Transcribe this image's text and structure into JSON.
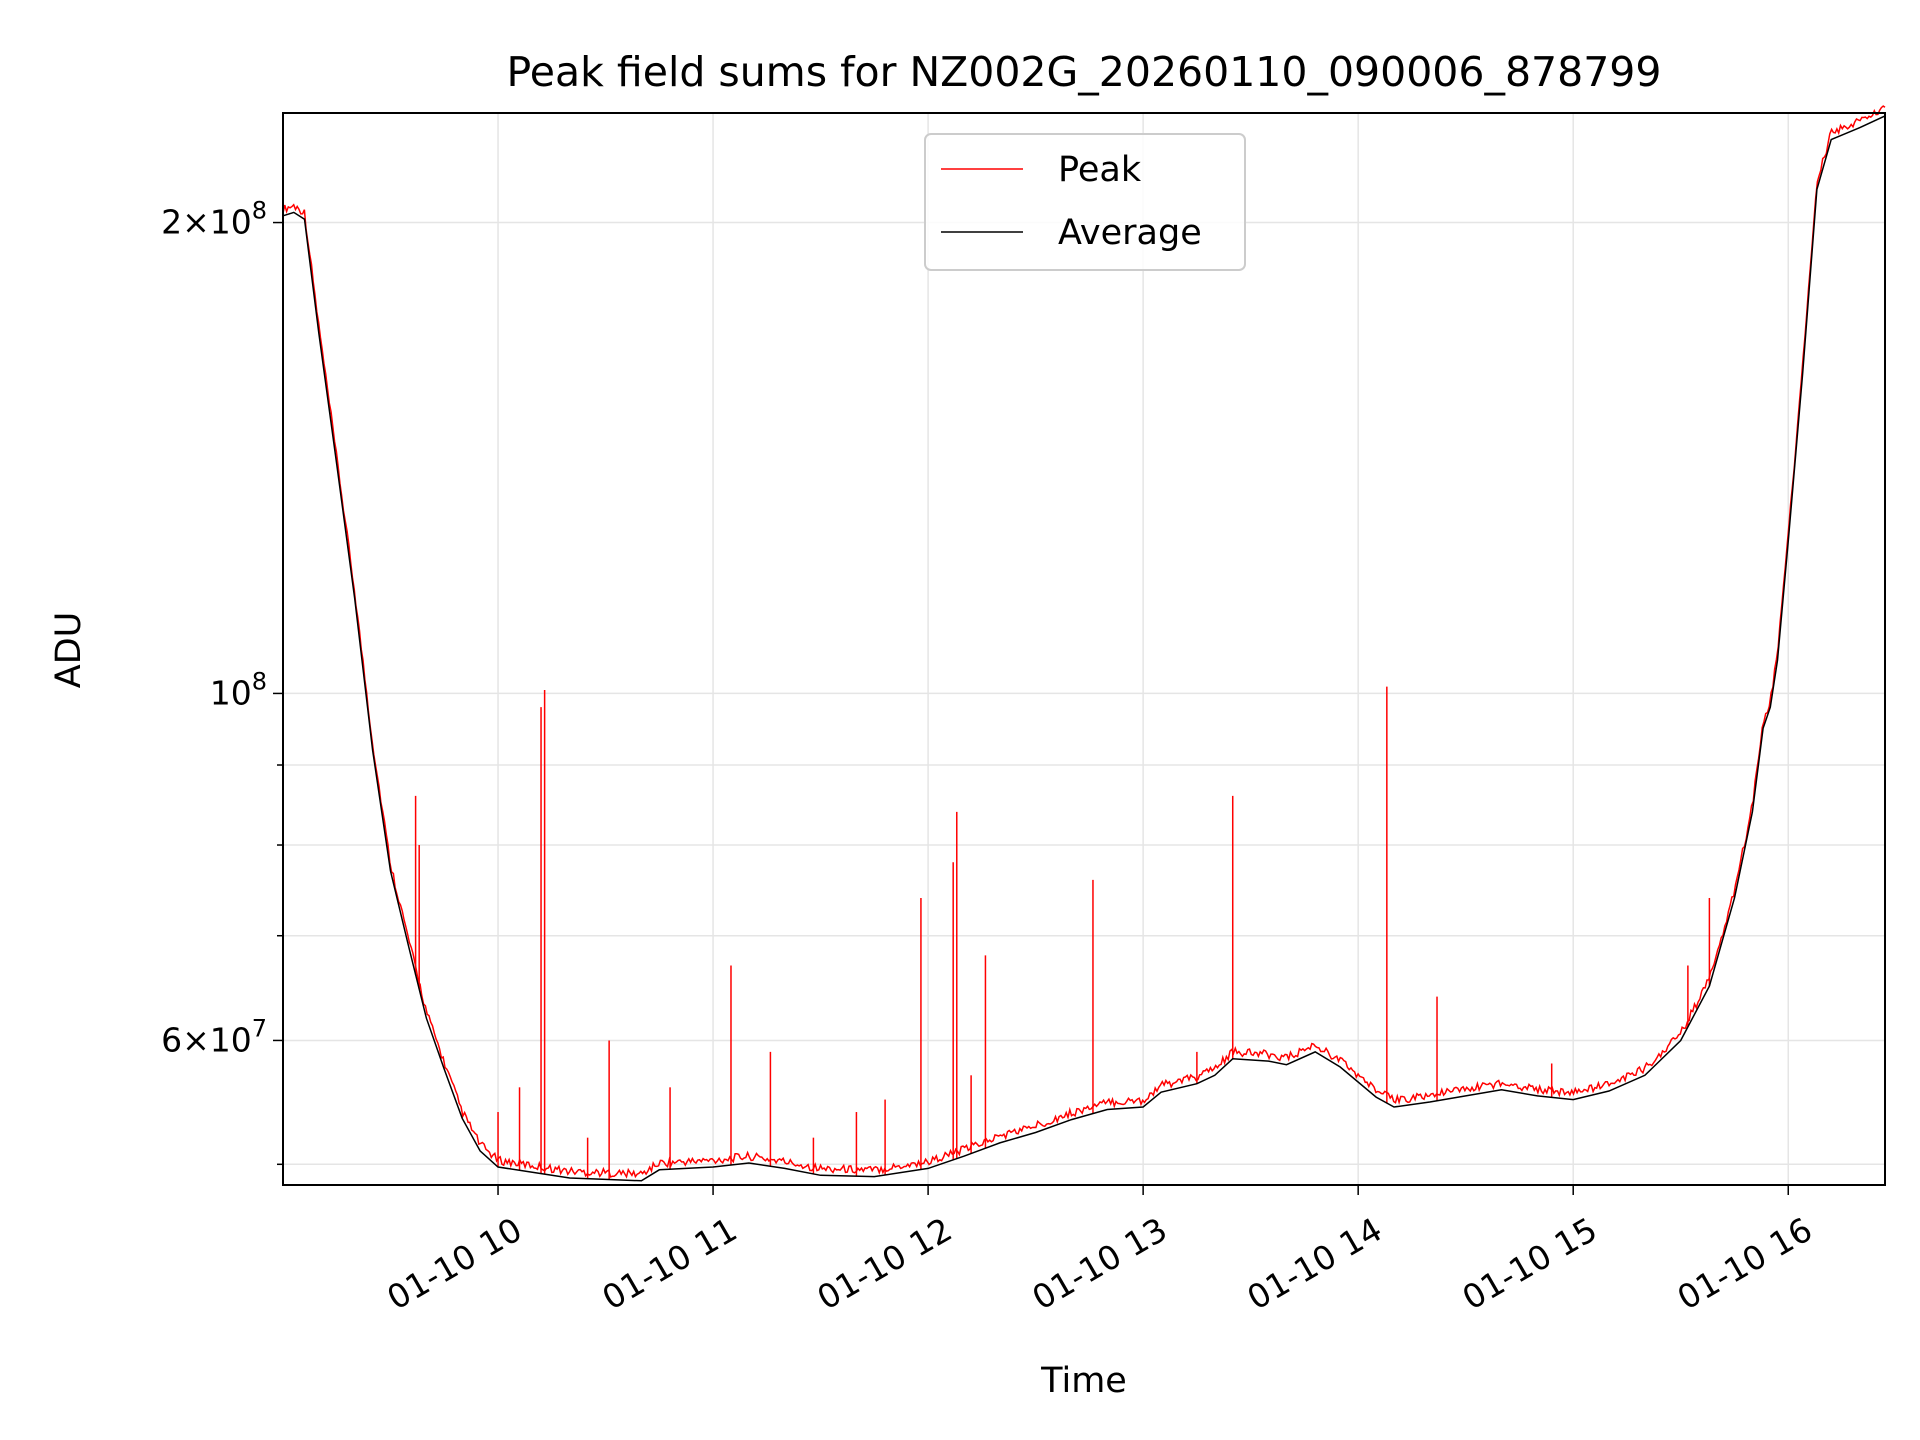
{
  "chart_data": {
    "type": "line",
    "title": "Peak field sums for NZ002G_20260110_090006_878799",
    "xlabel": "Time",
    "ylabel": "ADU",
    "x_range": [
      "2026-01-10 09:00",
      "2026-01-10 16:27"
    ],
    "yscale": "log",
    "ylim": [
      48500000,
      235000000
    ],
    "grid": true,
    "legend_position": "top-center",
    "x_ticks": [
      {
        "t": "2026-01-10 10:00",
        "label": "01-10 10"
      },
      {
        "t": "2026-01-10 11:00",
        "label": "01-10 11"
      },
      {
        "t": "2026-01-10 12:00",
        "label": "01-10 12"
      },
      {
        "t": "2026-01-10 13:00",
        "label": "01-10 13"
      },
      {
        "t": "2026-01-10 14:00",
        "label": "01-10 14"
      },
      {
        "t": "2026-01-10 15:00",
        "label": "01-10 15"
      },
      {
        "t": "2026-01-10 16:00",
        "label": "01-10 16"
      }
    ],
    "y_major_ticks": [
      {
        "value": 60000000,
        "base": "6",
        "exp": "7"
      },
      {
        "value": 100000000,
        "base": "",
        "exp": "8"
      },
      {
        "value": 200000000,
        "base": "2",
        "exp": "8"
      }
    ],
    "y_minor_ticks": [
      50000000,
      70000000,
      80000000,
      90000000
    ],
    "series": [
      {
        "name": "Average",
        "color": "#000000",
        "points": [
          [
            "2026-01-10 09:00",
            202000000
          ],
          [
            "2026-01-10 09:03",
            203000000
          ],
          [
            "2026-01-10 09:06",
            201000000
          ],
          [
            "2026-01-10 09:10",
            170000000
          ],
          [
            "2026-01-10 09:15",
            140000000
          ],
          [
            "2026-01-10 09:20",
            115000000
          ],
          [
            "2026-01-10 09:25",
            92000000
          ],
          [
            "2026-01-10 09:30",
            77000000
          ],
          [
            "2026-01-10 09:35",
            69000000
          ],
          [
            "2026-01-10 09:40",
            62000000
          ],
          [
            "2026-01-10 09:45",
            57500000
          ],
          [
            "2026-01-10 09:50",
            53500000
          ],
          [
            "2026-01-10 09:55",
            51000000
          ],
          [
            "2026-01-10 10:00",
            49800000
          ],
          [
            "2026-01-10 10:10",
            49400000
          ],
          [
            "2026-01-10 10:20",
            49000000
          ],
          [
            "2026-01-10 10:30",
            48900000
          ],
          [
            "2026-01-10 10:40",
            48800000
          ],
          [
            "2026-01-10 10:45",
            49600000
          ],
          [
            "2026-01-10 11:00",
            49800000
          ],
          [
            "2026-01-10 11:10",
            50100000
          ],
          [
            "2026-01-10 11:20",
            49700000
          ],
          [
            "2026-01-10 11:30",
            49200000
          ],
          [
            "2026-01-10 11:45",
            49100000
          ],
          [
            "2026-01-10 12:00",
            49700000
          ],
          [
            "2026-01-10 12:10",
            50600000
          ],
          [
            "2026-01-10 12:20",
            51600000
          ],
          [
            "2026-01-10 12:30",
            52400000
          ],
          [
            "2026-01-10 12:40",
            53400000
          ],
          [
            "2026-01-10 12:50",
            54200000
          ],
          [
            "2026-01-10 13:00",
            54400000
          ],
          [
            "2026-01-10 13:05",
            55600000
          ],
          [
            "2026-01-10 13:15",
            56300000
          ],
          [
            "2026-01-10 13:20",
            57000000
          ],
          [
            "2026-01-10 13:25",
            58400000
          ],
          [
            "2026-01-10 13:35",
            58200000
          ],
          [
            "2026-01-10 13:40",
            57900000
          ],
          [
            "2026-01-10 13:48",
            59000000
          ],
          [
            "2026-01-10 13:55",
            57700000
          ],
          [
            "2026-01-10 14:05",
            55200000
          ],
          [
            "2026-01-10 14:10",
            54400000
          ],
          [
            "2026-01-10 14:20",
            54800000
          ],
          [
            "2026-01-10 14:30",
            55300000
          ],
          [
            "2026-01-10 14:40",
            55800000
          ],
          [
            "2026-01-10 14:50",
            55300000
          ],
          [
            "2026-01-10 15:00",
            55000000
          ],
          [
            "2026-01-10 15:10",
            55700000
          ],
          [
            "2026-01-10 15:20",
            57000000
          ],
          [
            "2026-01-10 15:30",
            60000000
          ],
          [
            "2026-01-10 15:38",
            65000000
          ],
          [
            "2026-01-10 15:45",
            74000000
          ],
          [
            "2026-01-10 15:50",
            84000000
          ],
          [
            "2026-01-10 15:53",
            95000000
          ],
          [
            "2026-01-10 15:55",
            98000000
          ],
          [
            "2026-01-10 15:57",
            105000000
          ],
          [
            "2026-01-10 16:00",
            125000000
          ],
          [
            "2026-01-10 16:04",
            160000000
          ],
          [
            "2026-01-10 16:08",
            210000000
          ],
          [
            "2026-01-10 16:12",
            226000000
          ],
          [
            "2026-01-10 16:20",
            230000000
          ],
          [
            "2026-01-10 16:27",
            234000000
          ]
        ]
      },
      {
        "name": "Peak",
        "color": "#ff0000",
        "spikes": [
          [
            "2026-01-10 09:37",
            86000000
          ],
          [
            "2026-01-10 09:38",
            80000000
          ],
          [
            "2026-01-10 10:00",
            54000000
          ],
          [
            "2026-01-10 10:06",
            56000000
          ],
          [
            "2026-01-10 10:12",
            98000000
          ],
          [
            "2026-01-10 10:13",
            100500000
          ],
          [
            "2026-01-10 10:25",
            52000000
          ],
          [
            "2026-01-10 10:31",
            60000000
          ],
          [
            "2026-01-10 10:48",
            56000000
          ],
          [
            "2026-01-10 11:05",
            67000000
          ],
          [
            "2026-01-10 11:16",
            59000000
          ],
          [
            "2026-01-10 11:28",
            52000000
          ],
          [
            "2026-01-10 11:40",
            54000000
          ],
          [
            "2026-01-10 11:48",
            55000000
          ],
          [
            "2026-01-10 11:58",
            74000000
          ],
          [
            "2026-01-10 12:07",
            78000000
          ],
          [
            "2026-01-10 12:08",
            84000000
          ],
          [
            "2026-01-10 12:12",
            57000000
          ],
          [
            "2026-01-10 12:16",
            68000000
          ],
          [
            "2026-01-10 12:46",
            76000000
          ],
          [
            "2026-01-10 13:15",
            59000000
          ],
          [
            "2026-01-10 13:25",
            86000000
          ],
          [
            "2026-01-10 14:08",
            101000000
          ],
          [
            "2026-01-10 14:22",
            64000000
          ],
          [
            "2026-01-10 14:54",
            58000000
          ],
          [
            "2026-01-10 15:32",
            67000000
          ],
          [
            "2026-01-10 15:38",
            74000000
          ]
        ]
      }
    ]
  }
}
